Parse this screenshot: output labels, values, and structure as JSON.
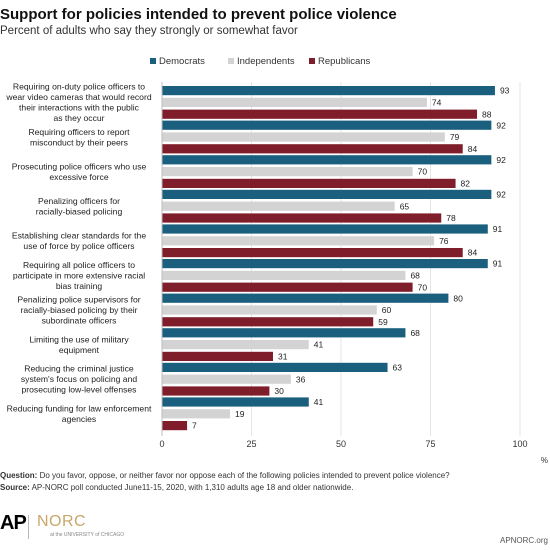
{
  "header": {
    "title": "Support for policies intended to prevent police violence",
    "subtitle": "Percent of adults who say they strongly or somewhat favor"
  },
  "colors": {
    "democrats": "#1b5f7f",
    "independents": "#d3d3d3",
    "republicans": "#7f1d2a"
  },
  "chart_data": {
    "type": "bar",
    "orientation": "horizontal",
    "categories": [
      "Requiring on-duty police officers to wear video cameras that would record their interactions with the public as they occur",
      "Requiring officers to report misconduct by their peers",
      "Prosecuting police officers who use excessive force",
      "Penalizing officers for racially-biased policing",
      "Establishing clear standards for the use of force by police officers",
      "Requiring all police officers to participate in more extensive racial bias training",
      "Penalizing police supervisors for racially-biased policing by their subordinate officers",
      "Limiting the use of military equipment",
      "Reducing the criminal justice system's focus on policing and prosecuting low-level offenses",
      "Reducing funding for law enforcement agencies"
    ],
    "series": [
      {
        "name": "Democrats",
        "values": [
          93,
          92,
          92,
          92,
          91,
          91,
          80,
          68,
          63,
          41
        ]
      },
      {
        "name": "Independents",
        "values": [
          74,
          79,
          70,
          65,
          76,
          68,
          60,
          41,
          36,
          19
        ]
      },
      {
        "name": "Republicans",
        "values": [
          88,
          84,
          82,
          78,
          84,
          70,
          59,
          31,
          30,
          7
        ]
      }
    ],
    "xlim": [
      0,
      100
    ],
    "xticks": [
      "0",
      "25",
      "50",
      "75",
      "100"
    ],
    "xunit": "%",
    "legend_position": "top",
    "grid": true,
    "data_labels": true
  },
  "footer": {
    "question_label": "Question:",
    "question_text": "Do you favor, oppose, or neither favor nor oppose each of the following policies  intended to prevent police violence?",
    "source_label": "Source:",
    "source_text": "AP-NORC poll conducted June11-15, 2020, with 1,310 adults age 18 and older nationwide."
  },
  "branding": {
    "ap": "AP",
    "norc": "NORC",
    "norc_sub": "at the UNIVERSITY of CHICAGO",
    "url": "APNORC.org"
  }
}
